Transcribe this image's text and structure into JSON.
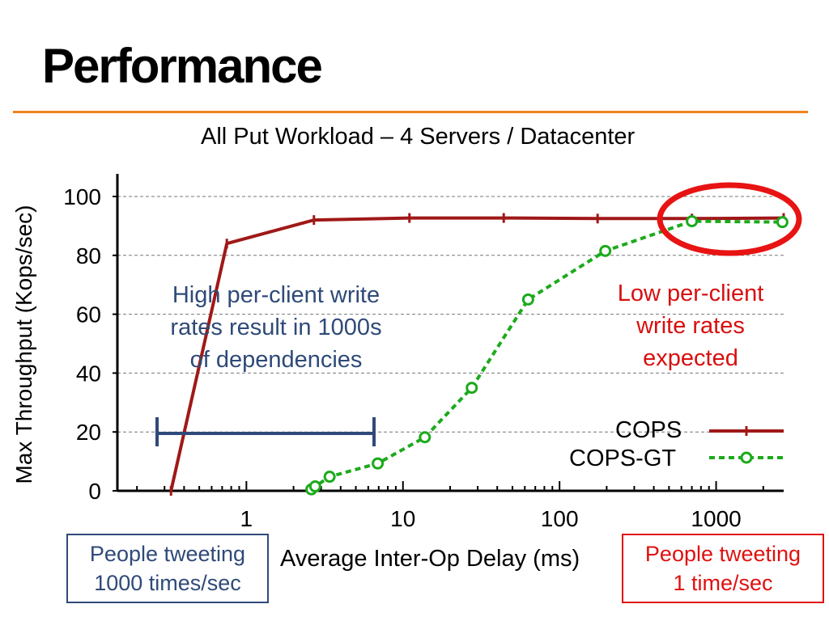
{
  "slide": {
    "title": "Performance",
    "accent_color": "#f0821e"
  },
  "chart_data": {
    "type": "line",
    "title": "All Put Workload – 4 Servers / Datacenter",
    "xlabel": "Average Inter-Op Delay (ms)",
    "ylabel": "Max Throughput (Kops/sec)",
    "x_scale": "log",
    "xlim": [
      0.15,
      2700
    ],
    "ylim": [
      0,
      100
    ],
    "x_ticks": [
      "1",
      "10",
      "100",
      "1000"
    ],
    "y_ticks": [
      "0",
      "20",
      "40",
      "60",
      "80",
      "100"
    ],
    "grid": "horizontal dashed",
    "legend_position": "bottom-right",
    "series": [
      {
        "name": "COPS",
        "color": "#a01818",
        "marker": "plus",
        "line": "solid",
        "x": [
          0.33,
          0.75,
          2.7,
          11,
          44,
          175,
          700,
          2700
        ],
        "y": [
          0,
          84,
          92,
          92.7,
          92.7,
          92.5,
          92.5,
          92.7
        ]
      },
      {
        "name": "COPS-GT",
        "color": "#1caa1c",
        "marker": "circle",
        "line": "dashed",
        "x": [
          2.6,
          2.75,
          3.4,
          6.9,
          13.8,
          27.5,
          63,
          196,
          700,
          2650
        ],
        "y": [
          0.5,
          1.5,
          4.8,
          9.3,
          18.2,
          35,
          65,
          81.5,
          91.6,
          91.3
        ]
      }
    ]
  },
  "annotations": {
    "high_rate": [
      "High per-client write",
      "rates result in 1000s",
      "of dependencies"
    ],
    "low_rate": [
      "Low per-client",
      "write rates",
      "expected"
    ],
    "people_fast": [
      "People tweeting",
      "1000 times/sec"
    ],
    "people_slow": [
      "People tweeting",
      "1 time/sec"
    ],
    "high_color": "#2f4a78",
    "low_color": "#e01010",
    "highlight_color": "#e81313"
  }
}
